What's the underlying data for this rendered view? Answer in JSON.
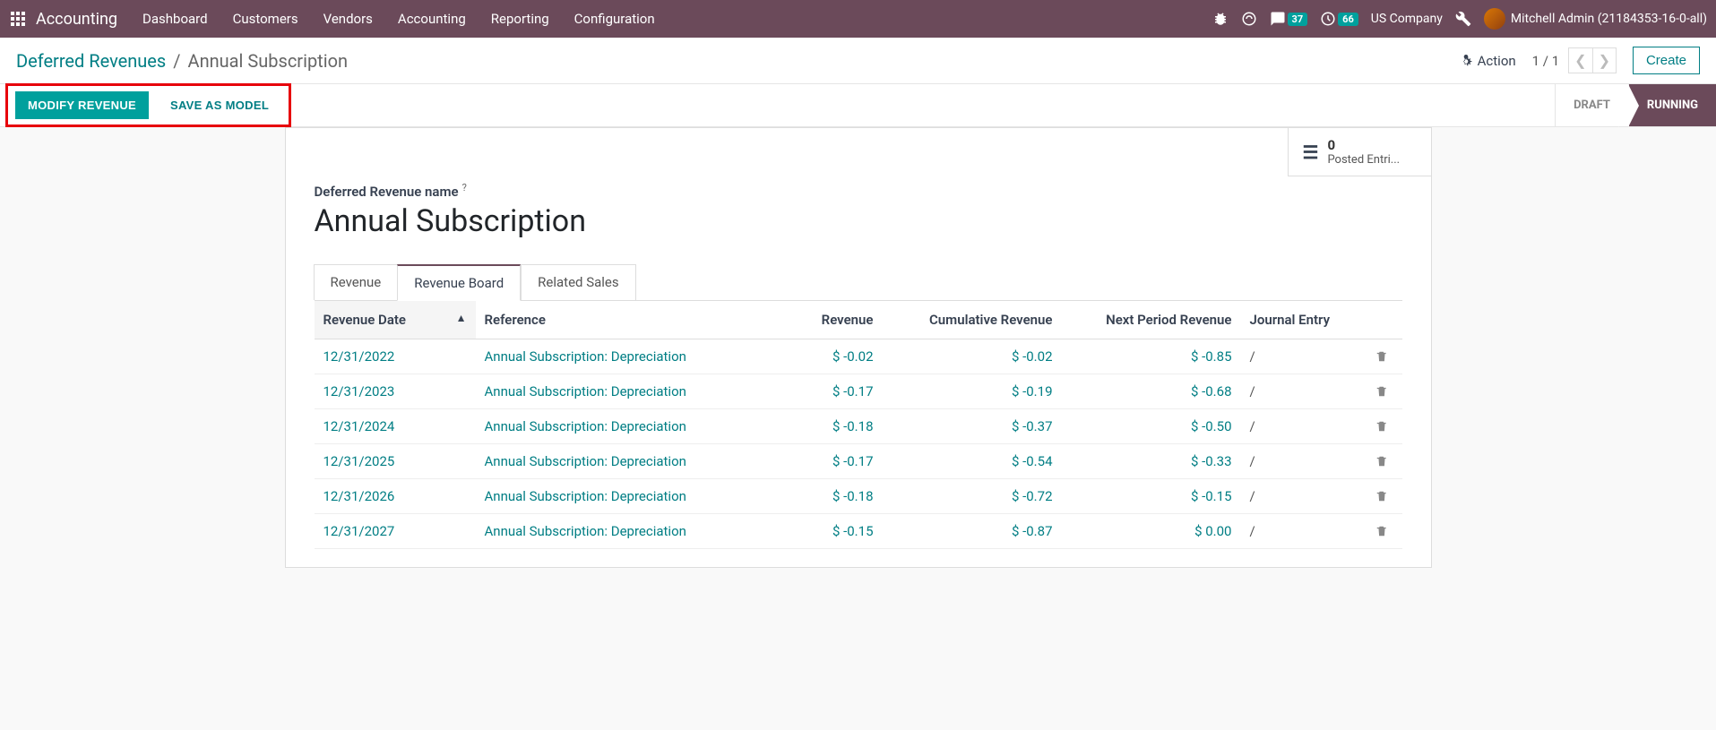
{
  "navbar": {
    "brand": "Accounting",
    "menu": [
      "Dashboard",
      "Customers",
      "Vendors",
      "Accounting",
      "Reporting",
      "Configuration"
    ],
    "chat_badge": "37",
    "activity_badge": "66",
    "company": "US Company",
    "user": "Mitchell Admin (21184353-16-0-all)"
  },
  "breadcrumb": {
    "parent": "Deferred Revenues",
    "current": "Annual Subscription"
  },
  "control": {
    "action_label": "Action",
    "pager": "1 / 1",
    "create_label": "Create"
  },
  "buttons": {
    "modify": "MODIFY REVENUE",
    "save_model": "SAVE AS MODEL"
  },
  "status": {
    "draft": "DRAFT",
    "running": "RUNNING"
  },
  "posted": {
    "count": "0",
    "label": "Posted Entri..."
  },
  "form": {
    "field_label": "Deferred Revenue name",
    "title": "Annual Subscription"
  },
  "tabs": {
    "revenue": "Revenue",
    "board": "Revenue Board",
    "related": "Related Sales"
  },
  "table": {
    "headers": {
      "date": "Revenue Date",
      "reference": "Reference",
      "revenue": "Revenue",
      "cumulative": "Cumulative Revenue",
      "next": "Next Period Revenue",
      "journal": "Journal Entry"
    },
    "rows": [
      {
        "date": "12/31/2022",
        "ref": "Annual Subscription: Depreciation",
        "rev": "$ -0.02",
        "cum": "$ -0.02",
        "next": "$ -0.85",
        "jrn": "/"
      },
      {
        "date": "12/31/2023",
        "ref": "Annual Subscription: Depreciation",
        "rev": "$ -0.17",
        "cum": "$ -0.19",
        "next": "$ -0.68",
        "jrn": "/"
      },
      {
        "date": "12/31/2024",
        "ref": "Annual Subscription: Depreciation",
        "rev": "$ -0.18",
        "cum": "$ -0.37",
        "next": "$ -0.50",
        "jrn": "/"
      },
      {
        "date": "12/31/2025",
        "ref": "Annual Subscription: Depreciation",
        "rev": "$ -0.17",
        "cum": "$ -0.54",
        "next": "$ -0.33",
        "jrn": "/"
      },
      {
        "date": "12/31/2026",
        "ref": "Annual Subscription: Depreciation",
        "rev": "$ -0.18",
        "cum": "$ -0.72",
        "next": "$ -0.15",
        "jrn": "/"
      },
      {
        "date": "12/31/2027",
        "ref": "Annual Subscription: Depreciation",
        "rev": "$ -0.15",
        "cum": "$ -0.87",
        "next": "$ 0.00",
        "jrn": "/"
      }
    ]
  },
  "colors": {
    "primary_teal": "#00a09d",
    "link_teal": "#017e84",
    "navbar_bg": "#6b4a5a",
    "highlight_red": "#e7000b"
  }
}
